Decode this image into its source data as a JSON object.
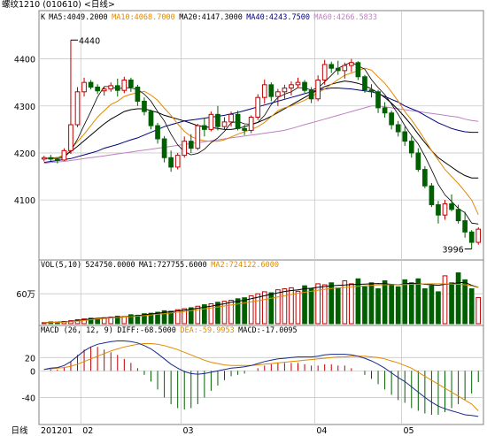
{
  "window": {
    "title": "螺纹1210 (010610) <日线>"
  },
  "chart_data": {
    "type": "candlestick",
    "period": "日线",
    "instrument": "螺纹1210",
    "code": "010610",
    "price_panel": {
      "ma_header": [
        {
          "label": "K",
          "color": "#000000"
        },
        {
          "label": "MA5:4049.2000",
          "color": "#000000"
        },
        {
          "label": "MA10:4068.7000",
          "color": "#e08a00"
        },
        {
          "label": "MA20:4147.3000",
          "color": "#000000"
        },
        {
          "label": "MA40:4243.7500",
          "color": "#000080"
        },
        {
          "label": "MA60:4266.5833",
          "color": "#c080c0"
        }
      ],
      "ylim": [
        3980,
        4480
      ],
      "y_ticks": [
        "4100",
        "4200",
        "4300",
        "4400"
      ],
      "annotations": {
        "high_label": "4440",
        "low_label": "3996",
        "high": 4440,
        "low": 3996
      },
      "candles": [
        [
          4187,
          4194,
          4182,
          4190
        ],
        [
          4190,
          4196,
          4183,
          4187
        ],
        [
          4186,
          4190,
          4178,
          4185
        ],
        [
          4185,
          4210,
          4183,
          4205
        ],
        [
          4205,
          4440,
          4198,
          4260
        ],
        [
          4260,
          4340,
          4255,
          4330
        ],
        [
          4330,
          4360,
          4320,
          4350
        ],
        [
          4350,
          4355,
          4335,
          4340
        ],
        [
          4340,
          4346,
          4325,
          4332
        ],
        [
          4332,
          4340,
          4322,
          4336
        ],
        [
          4336,
          4350,
          4330,
          4343
        ],
        [
          4343,
          4358,
          4320,
          4333
        ],
        [
          4333,
          4362,
          4327,
          4355
        ],
        [
          4355,
          4360,
          4330,
          4340
        ],
        [
          4340,
          4345,
          4300,
          4310
        ],
        [
          4310,
          4318,
          4280,
          4288
        ],
        [
          4288,
          4292,
          4250,
          4258
        ],
        [
          4258,
          4264,
          4220,
          4230
        ],
        [
          4230,
          4236,
          4180,
          4190
        ],
        [
          4190,
          4205,
          4160,
          4170
        ],
        [
          4170,
          4200,
          4165,
          4195
        ],
        [
          4195,
          4235,
          4190,
          4225
        ],
        [
          4225,
          4240,
          4200,
          4210
        ],
        [
          4210,
          4262,
          4206,
          4258
        ],
        [
          4258,
          4275,
          4235,
          4250
        ],
        [
          4250,
          4288,
          4246,
          4282
        ],
        [
          4282,
          4300,
          4248,
          4256
        ],
        [
          4256,
          4276,
          4250,
          4266
        ],
        [
          4266,
          4288,
          4256,
          4282
        ],
        [
          4282,
          4290,
          4248,
          4252
        ],
        [
          4252,
          4260,
          4238,
          4248
        ],
        [
          4248,
          4280,
          4242,
          4276
        ],
        [
          4276,
          4325,
          4270,
          4318
        ],
        [
          4318,
          4356,
          4305,
          4345
        ],
        [
          4345,
          4350,
          4310,
          4320
        ],
        [
          4320,
          4336,
          4300,
          4330
        ],
        [
          4330,
          4345,
          4315,
          4338
        ],
        [
          4338,
          4352,
          4322,
          4345
        ],
        [
          4345,
          4360,
          4338,
          4350
        ],
        [
          4350,
          4355,
          4328,
          4333
        ],
        [
          4333,
          4340,
          4306,
          4315
        ],
        [
          4315,
          4365,
          4310,
          4355
        ],
        [
          4355,
          4398,
          4345,
          4388
        ],
        [
          4388,
          4394,
          4370,
          4380
        ],
        [
          4380,
          4396,
          4366,
          4375
        ],
        [
          4375,
          4392,
          4358,
          4386
        ],
        [
          4386,
          4400,
          4372,
          4392
        ],
        [
          4392,
          4395,
          4355,
          4362
        ],
        [
          4362,
          4366,
          4328,
          4334
        ],
        [
          4334,
          4346,
          4318,
          4330
        ],
        [
          4330,
          4334,
          4285,
          4296
        ],
        [
          4296,
          4308,
          4275,
          4285
        ],
        [
          4285,
          4290,
          4250,
          4260
        ],
        [
          4260,
          4268,
          4235,
          4245
        ],
        [
          4245,
          4256,
          4215,
          4225
        ],
        [
          4225,
          4235,
          4190,
          4200
        ],
        [
          4200,
          4210,
          4160,
          4165
        ],
        [
          4165,
          4172,
          4125,
          4130
        ],
        [
          4130,
          4136,
          4085,
          4090
        ],
        [
          4090,
          4098,
          4050,
          4068
        ],
        [
          4068,
          4100,
          4058,
          4092
        ],
        [
          4092,
          4112,
          4076,
          4080
        ],
        [
          4080,
          4090,
          4050,
          4056
        ],
        [
          4056,
          4075,
          4020,
          4032
        ],
        [
          4032,
          4036,
          3996,
          4010
        ],
        [
          4010,
          4042,
          4005,
          4038
        ]
      ],
      "ma5": [
        4188,
        4189,
        4188,
        4190,
        4205,
        4229,
        4259,
        4288,
        4319,
        4341,
        4341,
        4336,
        4339,
        4338,
        4335,
        4325,
        4310,
        4288,
        4268,
        4240,
        4217,
        4203,
        4196,
        4199,
        4208,
        4222,
        4232,
        4246,
        4264,
        4267,
        4262,
        4261,
        4265,
        4280,
        4303,
        4318,
        4325,
        4330,
        4339,
        4338,
        4334,
        4338,
        4351,
        4365,
        4380,
        4387,
        4393,
        4385,
        4378,
        4356,
        4339,
        4324,
        4304,
        4282,
        4258,
        4237,
        4219,
        4193,
        4164,
        4133,
        4111,
        4097,
        4082,
        4073,
        4051,
        4049
      ],
      "ma10": [
        4188,
        4189,
        4190,
        4196,
        4208,
        4224,
        4240,
        4258,
        4276,
        4290,
        4303,
        4310,
        4320,
        4325,
        4328,
        4331,
        4323,
        4312,
        4295,
        4280,
        4262,
        4246,
        4235,
        4229,
        4226,
        4225,
        4225,
        4228,
        4234,
        4240,
        4245,
        4250,
        4256,
        4265,
        4277,
        4290,
        4296,
        4300,
        4306,
        4312,
        4320,
        4328,
        4336,
        4346,
        4356,
        4365,
        4370,
        4375,
        4380,
        4376,
        4362,
        4348,
        4330,
        4310,
        4288,
        4270,
        4250,
        4228,
        4205,
        4185,
        4165,
        4150,
        4135,
        4118,
        4100,
        4069
      ],
      "ma20": [
        4188,
        4189,
        4190,
        4194,
        4203,
        4214,
        4226,
        4238,
        4250,
        4262,
        4272,
        4280,
        4288,
        4292,
        4294,
        4294,
        4290,
        4286,
        4280,
        4276,
        4272,
        4268,
        4263,
        4258,
        4256,
        4254,
        4252,
        4250,
        4250,
        4252,
        4256,
        4260,
        4265,
        4271,
        4278,
        4286,
        4294,
        4302,
        4310,
        4318,
        4326,
        4334,
        4341,
        4346,
        4350,
        4353,
        4351,
        4348,
        4343,
        4336,
        4328,
        4318,
        4306,
        4292,
        4276,
        4259,
        4240,
        4222,
        4205,
        4190,
        4180,
        4170,
        4160,
        4152,
        4147,
        4147
      ],
      "ma40": [
        4180,
        4182,
        4184,
        4186,
        4188,
        4192,
        4196,
        4200,
        4204,
        4210,
        4214,
        4218,
        4223,
        4228,
        4232,
        4238,
        4244,
        4250,
        4256,
        4260,
        4264,
        4268,
        4270,
        4272,
        4274,
        4276,
        4278,
        4280,
        4283,
        4286,
        4290,
        4294,
        4298,
        4302,
        4306,
        4310,
        4314,
        4318,
        4322,
        4326,
        4330,
        4334,
        4336,
        4338,
        4338,
        4337,
        4336,
        4334,
        4332,
        4330,
        4326,
        4320,
        4314,
        4308,
        4300,
        4294,
        4288,
        4280,
        4272,
        4264,
        4258,
        4252,
        4248,
        4245,
        4244,
        4244
      ],
      "ma60": [
        4178,
        4180,
        4181,
        4182,
        4184,
        4186,
        4188,
        4190,
        4192,
        4194,
        4196,
        4198,
        4200,
        4202,
        4204,
        4206,
        4208,
        4210,
        4212,
        4214,
        4216,
        4218,
        4220,
        4222,
        4224,
        4226,
        4228,
        4230,
        4232,
        4234,
        4236,
        4238,
        4240,
        4242,
        4244,
        4246,
        4248,
        4252,
        4256,
        4260,
        4264,
        4268,
        4272,
        4276,
        4280,
        4284,
        4288,
        4292,
        4296,
        4300,
        4300,
        4298,
        4296,
        4294,
        4292,
        4290,
        4288,
        4286,
        4284,
        4282,
        4280,
        4278,
        4276,
        4272,
        4269,
        4267
      ]
    },
    "volume_panel": {
      "header": [
        {
          "label": "VOL(5,10)",
          "color": "#000000"
        },
        {
          "label": "524750.0000",
          "color": "#000000"
        },
        {
          "label": "MA1:727755.6000",
          "color": "#000000"
        },
        {
          "label": "MA2:724122.6000",
          "color": "#e08a00"
        }
      ],
      "y_ticks": [
        "60万"
      ],
      "ylim": [
        0,
        1100000
      ],
      "volumes": [
        20000,
        35000,
        30000,
        45000,
        60000,
        80000,
        95000,
        110000,
        100000,
        120000,
        130000,
        150000,
        140000,
        180000,
        170000,
        200000,
        210000,
        230000,
        260000,
        250000,
        280000,
        300000,
        320000,
        350000,
        380000,
        400000,
        430000,
        450000,
        470000,
        500000,
        520000,
        560000,
        600000,
        640000,
        620000,
        680000,
        700000,
        720000,
        650000,
        760000,
        700000,
        800000,
        780000,
        820000,
        720000,
        860000,
        800000,
        900000,
        740000,
        820000,
        700000,
        860000,
        780000,
        740000,
        880000,
        820000,
        900000,
        700000,
        760000,
        640000,
        960000,
        820000,
        1020000,
        880000,
        700000,
        524750
      ],
      "ma1": [
        20000,
        28000,
        30000,
        35000,
        45000,
        62000,
        80000,
        95000,
        108000,
        115000,
        125000,
        132000,
        140000,
        150000,
        160000,
        180000,
        195000,
        210000,
        225000,
        240000,
        258000,
        270000,
        290000,
        310000,
        330000,
        350000,
        380000,
        400000,
        430000,
        450000,
        470000,
        500000,
        530000,
        560000,
        590000,
        620000,
        645000,
        665000,
        680000,
        700000,
        712000,
        730000,
        745000,
        760000,
        770000,
        775000,
        785000,
        790000,
        795000,
        800000,
        805000,
        800000,
        790000,
        780000,
        800000,
        810000,
        805000,
        790000,
        780000,
        770000,
        790000,
        800000,
        820000,
        830000,
        770000,
        727756
      ],
      "ma2": [
        20000,
        25000,
        28000,
        32000,
        40000,
        52000,
        66000,
        80000,
        95000,
        105000,
        115000,
        125000,
        133000,
        142000,
        150000,
        162000,
        175000,
        188000,
        200000,
        215000,
        230000,
        245000,
        262000,
        280000,
        298000,
        315000,
        335000,
        355000,
        375000,
        395000,
        415000,
        438000,
        460000,
        485000,
        510000,
        535000,
        560000,
        585000,
        610000,
        630000,
        650000,
        672000,
        690000,
        705000,
        718000,
        730000,
        740000,
        750000,
        760000,
        770000,
        778000,
        780000,
        782000,
        783000,
        786000,
        790000,
        795000,
        798000,
        800000,
        800000,
        798000,
        796000,
        790000,
        780000,
        760000,
        724123
      ]
    },
    "macd_panel": {
      "header": [
        {
          "label": "MACD (26, 12, 9)",
          "color": "#000000"
        },
        {
          "label": "DIFF:-68.5000",
          "color": "#000000"
        },
        {
          "label": "DEA:-59.9953",
          "color": "#e08a00"
        },
        {
          "label": "MACD:-17.0095",
          "color": "#000000"
        }
      ],
      "y_ticks": [
        "20",
        "0",
        "-40"
      ],
      "ylim": [
        -78,
        55
      ],
      "diff": [
        2,
        4,
        5,
        8,
        14,
        22,
        30,
        36,
        40,
        42,
        44,
        45,
        45,
        44,
        42,
        38,
        33,
        26,
        18,
        10,
        4,
        -1,
        -4,
        -5,
        -4,
        -2,
        0,
        2,
        4,
        5,
        6,
        8,
        11,
        14,
        16,
        18,
        19,
        20,
        21,
        21,
        21,
        22,
        24,
        25,
        25,
        25,
        24,
        22,
        19,
        15,
        10,
        4,
        -3,
        -10,
        -16,
        -24,
        -32,
        -40,
        -47,
        -53,
        -57,
        -60,
        -63,
        -66,
        -67,
        -68.5
      ],
      "dea": [
        2,
        3,
        4,
        5,
        7,
        10,
        14,
        18,
        22,
        26,
        30,
        33,
        36,
        38,
        40,
        41,
        41,
        40,
        38,
        35,
        32,
        28,
        24,
        20,
        16,
        13,
        11,
        9,
        8,
        8,
        8,
        8,
        9,
        10,
        11,
        12,
        13,
        14,
        15,
        16,
        17,
        18,
        19,
        20,
        21,
        21,
        22,
        22,
        22,
        21,
        20,
        18,
        15,
        12,
        8,
        4,
        -2,
        -8,
        -14,
        -20,
        -26,
        -32,
        -38,
        -44,
        -50,
        -60
      ],
      "macd": [
        0,
        2,
        2,
        6,
        14,
        24,
        32,
        36,
        36,
        32,
        28,
        24,
        18,
        12,
        4,
        -6,
        -16,
        -28,
        -40,
        -50,
        -56,
        -58,
        -56,
        -50,
        -40,
        -30,
        -22,
        -14,
        -8,
        -6,
        -4,
        0,
        4,
        8,
        10,
        12,
        12,
        12,
        12,
        10,
        8,
        8,
        10,
        10,
        8,
        8,
        4,
        0,
        -6,
        -12,
        -20,
        -28,
        -36,
        -44,
        -48,
        -56,
        -60,
        -64,
        -66,
        -66,
        -62,
        -56,
        -50,
        -44,
        -34,
        -17
      ]
    },
    "time_axis": {
      "label": "日线",
      "ticks": [
        {
          "label": "201201",
          "index": 0
        },
        {
          "label": "02",
          "index": 6
        },
        {
          "label": "03",
          "index": 21
        },
        {
          "label": "04",
          "index": 41
        },
        {
          "label": "05",
          "index": 54
        }
      ]
    },
    "colors": {
      "up": "#c00000",
      "down": "#006000",
      "grid": "#c8c8c8",
      "ma5": "#000000",
      "ma10": "#e08a00",
      "ma20": "#000000",
      "ma40": "#000080",
      "ma60": "#c080c0",
      "diff": "#1a2a8a",
      "dea": "#e08a00"
    }
  }
}
